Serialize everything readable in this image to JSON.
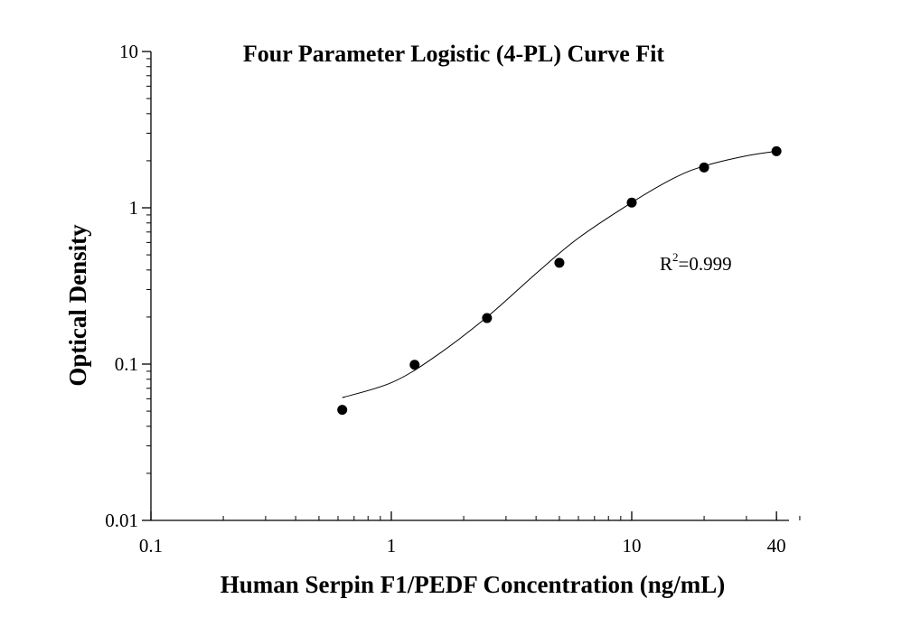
{
  "chart_data": {
    "type": "scatter",
    "title": "Four Parameter Logistic (4-PL) Curve Fit",
    "xlabel": "Human Serpin F1/PEDF Concentration (ng/mL)",
    "ylabel": "Optical Density",
    "x_scale": "log",
    "y_scale": "log",
    "xlim": [
      0.1,
      50
    ],
    "ylim": [
      0.01,
      10
    ],
    "x_ticks": [
      {
        "value": 0.1,
        "label": "0.1"
      },
      {
        "value": 1,
        "label": "1"
      },
      {
        "value": 10,
        "label": "10"
      },
      {
        "value": 40,
        "label": "40"
      }
    ],
    "y_ticks": [
      {
        "value": 0.01,
        "label": "0.01"
      },
      {
        "value": 0.1,
        "label": "0.1"
      },
      {
        "value": 1,
        "label": "1"
      },
      {
        "value": 10,
        "label": "10"
      }
    ],
    "points": [
      {
        "x": 0.625,
        "y": 0.051
      },
      {
        "x": 1.25,
        "y": 0.099
      },
      {
        "x": 2.5,
        "y": 0.197
      },
      {
        "x": 5,
        "y": 0.445
      },
      {
        "x": 10,
        "y": 1.08
      },
      {
        "x": 20,
        "y": 1.81
      },
      {
        "x": 40,
        "y": 2.3
      }
    ],
    "fit_curve": [
      {
        "x": 0.625,
        "y": 0.061
      },
      {
        "x": 1,
        "y": 0.076
      },
      {
        "x": 1.5,
        "y": 0.11
      },
      {
        "x": 2.5,
        "y": 0.2
      },
      {
        "x": 4,
        "y": 0.38
      },
      {
        "x": 6,
        "y": 0.64
      },
      {
        "x": 10,
        "y": 1.08
      },
      {
        "x": 15,
        "y": 1.55
      },
      {
        "x": 20,
        "y": 1.85
      },
      {
        "x": 30,
        "y": 2.15
      },
      {
        "x": 40,
        "y": 2.3
      }
    ],
    "annotation": {
      "prefix": "R",
      "superscript": "2",
      "value": "=0.999"
    },
    "grid": false,
    "legend": "none",
    "marker_color": "#000000",
    "line_color": "#000000"
  }
}
